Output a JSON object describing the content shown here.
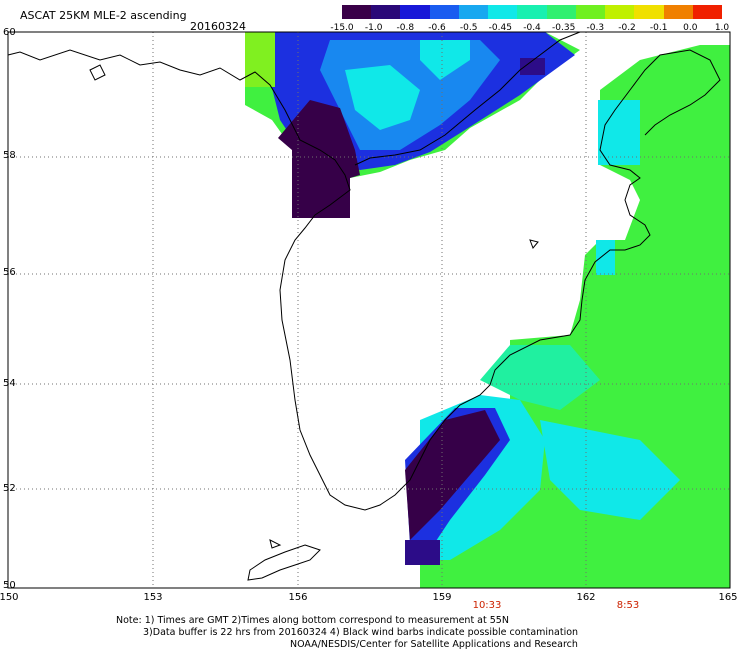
{
  "header": {
    "title": "ASCAT 25KM MLE-2 ascending",
    "date": "20160324"
  },
  "colorbar": {
    "labels": [
      "-15.0",
      "-1.0",
      "-0.8",
      "-0.6",
      "-0.5",
      "-0.45",
      "-0.4",
      "-0.35",
      "-0.3",
      "-0.2",
      "-0.1",
      "0.0",
      "1.0"
    ],
    "colors": [
      "#3a0048",
      "#2a0878",
      "#1818d8",
      "#1a5cf0",
      "#18a8f0",
      "#10e8e8",
      "#18f0b0",
      "#30f070",
      "#70f020",
      "#c0f000",
      "#f0e000",
      "#f08000",
      "#f02000"
    ]
  },
  "axes": {
    "lat_labels": [
      "60",
      "58",
      "56",
      "54",
      "52",
      "50"
    ],
    "lon_labels": [
      "150",
      "153",
      "156",
      "159",
      "162",
      "165"
    ]
  },
  "time_labels": [
    "10:33",
    "8:53"
  ],
  "notes": {
    "line1": "Note: 1) Times are GMT 2)Times along bottom correspond to measurement at 55N",
    "line2": "3)Data buffer is 22 hrs from 20160324 4) Black wind barbs indicate possible contamination",
    "line3": "NOAA/NESDIS/Center for Satellite Applications and Research"
  },
  "palette": {
    "deep_purple": "#360048",
    "indigo": "#2c0c88",
    "blue": "#1c30e0",
    "azure": "#1888f0",
    "cyan": "#10e8e8",
    "aqua_green": "#20f0a0",
    "green": "#40f040",
    "lime": "#80f020",
    "coast": "#000000",
    "grid": "#707070",
    "time_text": "#cc2200"
  }
}
